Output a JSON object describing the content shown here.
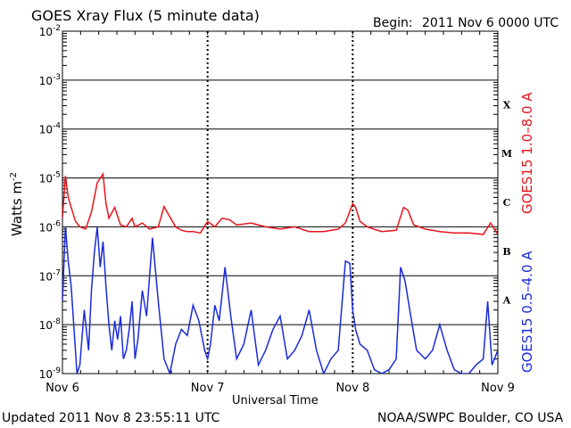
{
  "header": {
    "title": "GOES Xray Flux (5 minute data)",
    "begin_label": "Begin:",
    "begin_value": "2011 Nov 6 0000 UTC"
  },
  "footer": {
    "updated": "Updated 2011 Nov  8 23:55:11 UTC",
    "credit": "NOAA/SWPC Boulder, CO USA"
  },
  "chart_data": {
    "type": "line",
    "title": "GOES Xray Flux (5 minute data)",
    "xlabel": "Universal Time",
    "ylabel": "Watts m",
    "ylabel_superscript": "-2",
    "x_ticks": [
      "Nov 6",
      "Nov 7",
      "Nov 8",
      "Nov 9"
    ],
    "x_range_days": [
      0,
      3
    ],
    "y_scale": "log",
    "ylim": [
      1e-09,
      0.01
    ],
    "y_ticks": [
      {
        "base": "10",
        "exp": "-9"
      },
      {
        "base": "10",
        "exp": "-8"
      },
      {
        "base": "10",
        "exp": "-7"
      },
      {
        "base": "10",
        "exp": "-6"
      },
      {
        "base": "10",
        "exp": "-5"
      },
      {
        "base": "10",
        "exp": "-4"
      },
      {
        "base": "10",
        "exp": "-3"
      },
      {
        "base": "10",
        "exp": "-2"
      }
    ],
    "flare_classes": [
      "A",
      "B",
      "C",
      "M",
      "X"
    ],
    "grid": true,
    "series": [
      {
        "name": "GOES15 1.0–8.0 A",
        "color": "#e8141c",
        "x": [
          0,
          0.02,
          0.04,
          0.06,
          0.09,
          0.12,
          0.16,
          0.2,
          0.24,
          0.28,
          0.3,
          0.32,
          0.36,
          0.4,
          0.44,
          0.48,
          0.5,
          0.55,
          0.6,
          0.66,
          0.7,
          0.74,
          0.78,
          0.82,
          0.86,
          0.9,
          0.95,
          1.0,
          1.05,
          1.1,
          1.15,
          1.2,
          1.3,
          1.4,
          1.5,
          1.6,
          1.7,
          1.8,
          1.9,
          1.95,
          2.0,
          2.02,
          2.05,
          2.1,
          2.2,
          2.3,
          2.35,
          2.38,
          2.42,
          2.5,
          2.6,
          2.7,
          2.8,
          2.9,
          2.95,
          3.0
        ],
        "y": [
          1.5e-06,
          1.1e-05,
          4e-06,
          2.5e-06,
          1.3e-06,
          1e-06,
          9e-07,
          2e-06,
          8e-06,
          1.2e-05,
          3e-06,
          1.5e-06,
          2.5e-06,
          1.1e-06,
          1e-06,
          1.5e-06,
          1e-06,
          1.2e-06,
          9e-07,
          1e-06,
          2.6e-06,
          1.6e-06,
          1e-06,
          8.5e-07,
          8e-07,
          8e-07,
          7.5e-07,
          1.3e-06,
          1e-06,
          1.5e-06,
          1.4e-06,
          1.1e-06,
          1.2e-06,
          1e-06,
          9e-07,
          1e-06,
          8e-07,
          8e-07,
          9e-07,
          1.2e-06,
          3e-06,
          2.5e-06,
          1.3e-06,
          1e-06,
          8e-07,
          8.5e-07,
          2.5e-06,
          2.2e-06,
          1.1e-06,
          9e-07,
          8e-07,
          7.5e-07,
          7.5e-07,
          7e-07,
          1.2e-06,
          7e-07
        ]
      },
      {
        "name": "GOES15 0.5–4.0 A",
        "color": "#1a2bd8",
        "x": [
          0,
          0.02,
          0.04,
          0.06,
          0.08,
          0.1,
          0.12,
          0.15,
          0.18,
          0.2,
          0.22,
          0.24,
          0.26,
          0.28,
          0.3,
          0.32,
          0.34,
          0.36,
          0.38,
          0.4,
          0.42,
          0.44,
          0.46,
          0.48,
          0.5,
          0.52,
          0.55,
          0.58,
          0.62,
          0.66,
          0.7,
          0.74,
          0.78,
          0.82,
          0.86,
          0.9,
          0.94,
          0.98,
          1.0,
          1.02,
          1.05,
          1.08,
          1.12,
          1.16,
          1.2,
          1.25,
          1.3,
          1.35,
          1.4,
          1.45,
          1.5,
          1.55,
          1.6,
          1.65,
          1.7,
          1.75,
          1.8,
          1.85,
          1.9,
          1.95,
          1.98,
          2.0,
          2.02,
          2.05,
          2.1,
          2.15,
          2.2,
          2.25,
          2.3,
          2.33,
          2.36,
          2.4,
          2.44,
          2.5,
          2.55,
          2.6,
          2.65,
          2.7,
          2.75,
          2.8,
          2.85,
          2.9,
          2.93,
          2.96,
          3.0
        ],
        "y": [
          3e-08,
          1e-06,
          2e-07,
          6e-08,
          8e-09,
          1e-09,
          1.5e-09,
          2e-08,
          3e-09,
          5e-08,
          3e-07,
          1e-06,
          1.5e-07,
          5e-07,
          6e-08,
          1e-08,
          3e-09,
          1.2e-08,
          5e-09,
          1.5e-08,
          2e-09,
          3e-09,
          8e-09,
          3e-08,
          2e-09,
          5e-09,
          5e-08,
          1.5e-08,
          6e-07,
          3e-08,
          2e-09,
          1e-09,
          4e-09,
          8e-09,
          6e-09,
          2.5e-08,
          1.2e-08,
          3e-09,
          2e-09,
          4e-09,
          2.5e-08,
          1.2e-08,
          1.5e-07,
          1.5e-08,
          2e-09,
          4e-09,
          2e-08,
          1.5e-09,
          3e-09,
          8e-09,
          1.5e-08,
          2e-09,
          3e-09,
          6e-09,
          2e-08,
          3e-09,
          1e-09,
          2e-09,
          3e-09,
          2e-07,
          1.8e-07,
          2e-08,
          8e-09,
          4e-09,
          3e-09,
          1.2e-09,
          1e-09,
          1.2e-09,
          2e-09,
          1.5e-07,
          8e-08,
          1.5e-08,
          3e-09,
          2e-09,
          3e-09,
          1e-08,
          3e-09,
          1.2e-09,
          1e-09,
          1e-09,
          1.5e-09,
          2e-09,
          3e-08,
          1.5e-09,
          3e-09
        ]
      }
    ]
  }
}
